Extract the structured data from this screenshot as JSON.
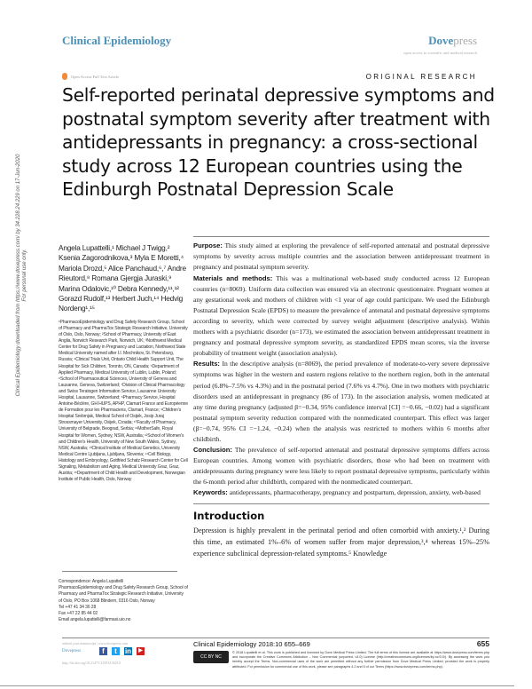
{
  "header": {
    "journal": "Clinical Epidemiology",
    "publisher_a": "Dove",
    "publisher_b": "press",
    "tagline": "open access to scientific and medical research",
    "open_access": "Open Access Full Text Article",
    "article_type": "ORIGINAL RESEARCH",
    "accent": "#4a90b8"
  },
  "title": "Self-reported perinatal depressive symptoms and postnatal symptom severity after treatment with antidepressants in pregnancy: a cross-sectional study across 12 European countries using the Edinburgh Postnatal Depression Scale",
  "side_note": {
    "line1": "Clinical Epidemiology downloaded from https://www.dovepress.com/ by 34.228.24.229 on 17-Jun-2020",
    "line2": "For personal use only."
  },
  "authors": "Angela Lupattelli,¹ Michael J Twigg,² Ksenia Zagorodnikova,³ Myla E Moretti,⁴ Mariola Drozd,⁵ Alice Panchaud,⁶,⁷ Andre Rieutord,⁸ Romana Gjergja Juraski,⁹ Marina Odalovic,¹⁰ Debra Kennedy,¹¹,¹² Gorazd Rudolf,¹³ Herbert Juch,¹⁴ Hedvig Nordeng¹,¹⁵",
  "affiliations": "¹PharmacoEpidemiology and Drug Safety Research Group, School of Pharmacy and PharmaTox Strategic Research Initiative, University of Oslo, Oslo, Norway; ²School of Pharmacy, University of East Anglia, Norwich Research Park, Norwich, UK; ³Northwest Medical Center for Drug Safety in Pregnancy and Lactation, Northwest State Medical University named after I.I. Mechnikov, St. Petersburg, Russia; ⁴Clinical Trials Unit, Ontario Child Health Support Unit, The Hospital for Sick Children, Toronto, ON, Canada; ⁵Department of Applied Pharmacy, Medical University of Lublin, Lublin, Poland; ⁶School of Pharmaceutical Sciences, University of Geneva and Lausanne, Geneva, Switzerland; ⁷Division of Clinical Pharmacology and Swiss Teratogen Information Service, Lausanne University Hospital, Lausanne, Switzerland; ⁸Pharmacy Service, Hospital Antoine-Béclère, GH HUPS, APHP, Clamart France and Européenne de Formation pour les Pharmaciens, Clamart, France; ⁹Children's Hospital Srebrnjak, Medical School of Osijek, Josip Juraj Strossmayer University, Osijek, Croatia; ¹⁰Faculty of Pharmacy, University of Belgrade, Beograd, Serbia; ¹¹MotherSafe, Royal Hospital for Women, Sydney, NSW, Australia; ¹²School of Women's and Children's Health, University of New South Wales, Sydney, NSW, Australia; ¹³Clinical Institute of Medical Genetics, University Medical Centre Ljubljana, Ljubljana, Slovenia; ¹⁴Cell Biology, Histology and Embryology, Gottfried Schatz Research Center for Cell Signaling, Metabolism and Aging, Medical University Graz, Graz, Austria; ¹⁵Department of Child Health and Development, Norwegian Institute of Public Health, Oslo, Norway",
  "abstract": [
    {
      "label": "Purpose:",
      "text": " This study aimed at exploring the prevalence of self-reported antenatal and postnatal depressive symptoms by severity across multiple countries and the association between antidepressant treatment in pregnancy and postnatal symptom severity."
    },
    {
      "label": "Materials and methods:",
      "text": " This was a multinational web-based study conducted across 12 European countries (n=8069). Uniform data collection was ensured via an electronic questionnaire. Pregnant women at any gestational week and mothers of children with <1 year of age could participate. We used the Edinburgh Postnatal Depression Scale (EPDS) to measure the prevalence of antenatal and postnatal depressive symptoms according to severity, which were corrected by survey weight adjustment (descriptive analysis). Within mothers with a psychiatric disorder (n=173), we estimated the association between antidepressant treatment in pregnancy and postnatal depressive symptom severity, as standardized EPDS mean scores, via the inverse probability of treatment weight (association analysis)."
    },
    {
      "label": "Results:",
      "text": " In the descriptive analysis (n=8069), the period prevalence of moderate-to-very severe depressive symptoms was higher in the western and eastern regions relative to the northern region, both in the antenatal period (6.8%–7.5% vs 4.3%) and in the postnatal period (7.6% vs 4.7%). One in two mothers with psychiatric disorders used an antidepressant in pregnancy (86 of 173). In the association analysis, women medicated at any time during pregnancy (adjusted β=−0.34, 95% confidence interval [CI] =−0.66, −0.02) had a significant postnatal symptom severity reduction compared with the nonmedicated counterpart. This effect was larger (β=−0.74, 95% CI =−1.24, −0.24) when the analysis was restricted to mothers within 6 months after childbirth."
    },
    {
      "label": "Conclusion:",
      "text": " The prevalence of self-reported antenatal and postnatal depressive symptoms differs across European countries. Among women with psychiatric disorders, those who had been on treatment with antidepressants during pregnancy were less likely to report postnatal depressive symptoms, particularly within the 6-month period after childbirth, compared with the nonmedicated counterpart."
    },
    {
      "label": "Keywords:",
      "text": " antidepressants, pharmacotherapy, pregnancy and postpartum, depression, anxiety, web-based"
    }
  ],
  "correspondence": {
    "label": "Correspondence: Angela Lupattelli",
    "address": "PharmacoEpidemiology and Drug Safety Research Group, School of Pharmacy and PharmaTox Strategic Research Initiative, University of Oslo, PO Box 1068 Blindern, 0316 Oslo, Norway",
    "tel": "Tel +47 41 34 36 28",
    "fax": "Fax +47 22 85 44 02",
    "email": "Email angela.lupattelli@farmasi.uio.no"
  },
  "intro": {
    "heading": "Introduction",
    "text": "Depression is highly prevalent in the perinatal period and often comorbid with anxiety.¹,² During this time, an estimated 1%–6% of women suffer from major depression,³,⁴ whereas 15%–25% experience subclinical depression-related symptoms.⁵ Knowledge"
  },
  "footer": {
    "submit": "submit your manuscript | www.dovepress.com",
    "dove": "Dovepress",
    "doi": "http://dx.doi.org/10.2147/CLEP.S156210",
    "citation": "Clinical Epidemiology 2018:10 655–669",
    "page": "655",
    "cc": "CC BY NC",
    "license": "© 2018 Lupattelli et al. This work is published and licensed by Dove Medical Press Limited. The full terms of this license are available at https://www.dovepress.com/terms.php and incorporate the Creative Commons Attribution – Non Commercial (unported, v3.0) License (http://creativecommons.org/licenses/by-nc/3.0/). By accessing the work you hereby accept the Terms. Non-commercial uses of the work are permitted without any further permission from Dove Medical Press Limited, provided the work is properly attributed. For permission for commercial use of this work, please see paragraphs 4.2 and 5 of our Terms (https://www.dovepress.com/terms.php).",
    "social": [
      "f",
      "t",
      "in",
      "▶"
    ]
  }
}
